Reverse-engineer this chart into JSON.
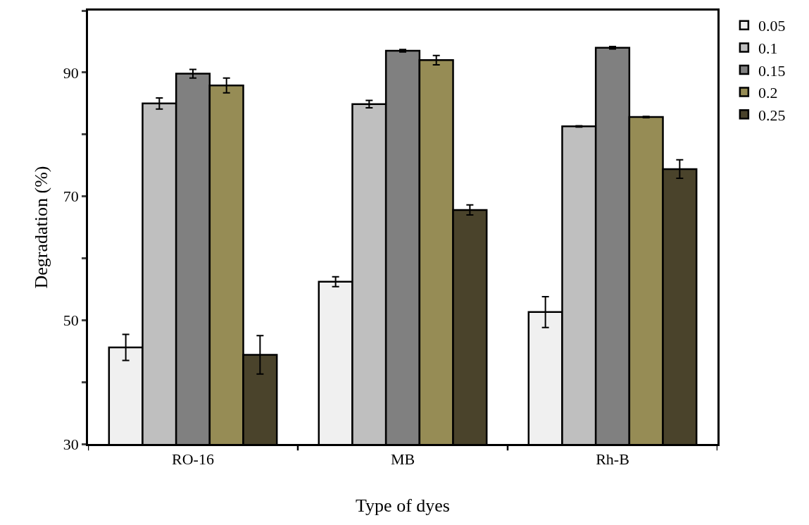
{
  "chart_data": {
    "type": "bar",
    "xlabel": "Type of dyes",
    "ylabel": "Degradation (%)",
    "categories": [
      "RO-16",
      "MB",
      "Rh-B"
    ],
    "series": [
      {
        "name": "0.05",
        "color": "#f0f0f0",
        "values": [
          45.6,
          56.2,
          51.3
        ],
        "errors": [
          2.1,
          0.8,
          2.5
        ]
      },
      {
        "name": "0.1",
        "color": "#bfbfbf",
        "values": [
          85.0,
          84.9,
          81.3
        ],
        "errors": [
          0.9,
          0.6,
          0.1
        ]
      },
      {
        "name": "0.15",
        "color": "#808080",
        "values": [
          89.8,
          93.5,
          94.0
        ],
        "errors": [
          0.7,
          0.2,
          0.2
        ]
      },
      {
        "name": "0.2",
        "color": "#968c55",
        "values": [
          87.9,
          92.0,
          82.8
        ],
        "errors": [
          1.2,
          0.75,
          0.1
        ]
      },
      {
        "name": "0.25",
        "color": "#4a432b",
        "values": [
          44.4,
          67.8,
          74.4
        ],
        "errors": [
          3.1,
          0.8,
          1.5
        ]
      }
    ],
    "ylim": [
      30,
      100
    ],
    "yticks": [
      30,
      {
        "value": 40,
        "label": null
      },
      50,
      {
        "value": 60,
        "label": null
      },
      70,
      {
        "value": 80,
        "label": null
      },
      90,
      {
        "value": 100,
        "label": null
      }
    ],
    "legend": "right"
  }
}
